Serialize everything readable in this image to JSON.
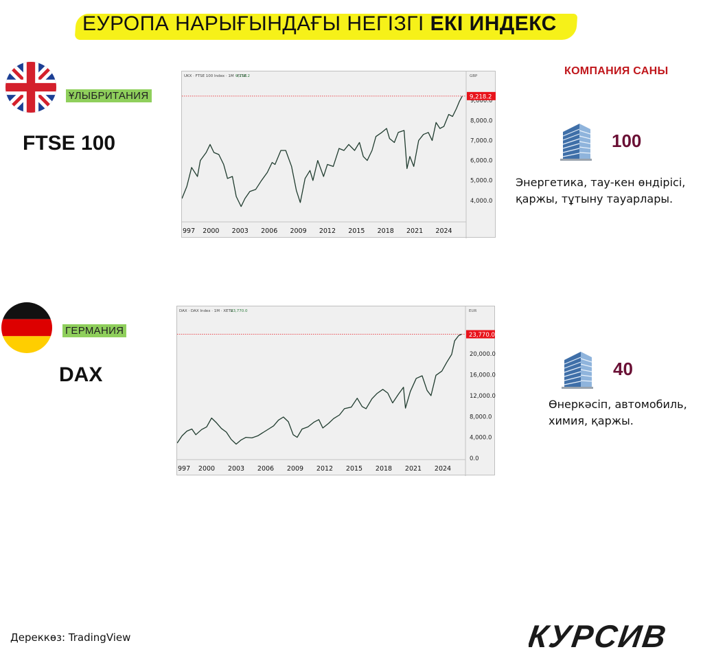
{
  "header": {
    "title_light": "ЕУРОПА НАРЫҒЫНДАҒЫ НЕГІЗГІ",
    "title_bold": "ЕКІ ИНДЕКС"
  },
  "company_count_label": "КОМПАНИЯ САНЫ",
  "uk": {
    "country": "ҰЛЫБРИТАНИЯ",
    "index": "FTSE 100",
    "count": "100",
    "sectors": "Энергетика, тау-кен өндірісі, қаржы, тұтыну тауарлары.",
    "flag_icon": "uk-flag-icon"
  },
  "de": {
    "country": "ГЕРМАНИЯ",
    "index": "DAX",
    "count": "40",
    "sectors": "Өнеркәсіп, автомобиль, химия, қаржы.",
    "flag_icon": "germany-flag-icon"
  },
  "footer": {
    "source": "Дереккөз: TradingView",
    "logo": "КУРСИВ"
  },
  "colors": {
    "title_highlight": "#f5ef00",
    "country_bg": "#8fcf5c",
    "accent_red": "#c0161b",
    "count_color": "#6a1035",
    "series_line": "#1f3b2e",
    "last_price_bg": "#e8131b"
  },
  "chart_data": [
    {
      "type": "line",
      "header": "UKX · FTSE 100 Index · 1M · FTSE",
      "header_value": "9,218.2",
      "currency": "GBP",
      "last_value_label": "9,218.2",
      "x_tick_labels": [
        "997",
        "2000",
        "2003",
        "2006",
        "2009",
        "2012",
        "2015",
        "2018",
        "2021",
        "2024"
      ],
      "y_tick_labels": [
        "4,000.0",
        "5,000.0",
        "6,000.0",
        "7,000.0",
        "8,000.0",
        "9,000.0"
      ],
      "xlim": [
        1997,
        2026.3
      ],
      "ylim": [
        3000,
        9900
      ],
      "yticks": [
        4000,
        5000,
        6000,
        7000,
        8000,
        9000
      ],
      "x": [
        1997,
        1997.5,
        1998,
        1998.6,
        1998.9,
        1999.5,
        1999.9,
        2000.3,
        2000.8,
        2001.3,
        2001.7,
        2002.2,
        2002.6,
        2003.1,
        2003.5,
        2004,
        2004.6,
        2005.2,
        2005.8,
        2006.3,
        2006.6,
        2007.2,
        2007.7,
        2008.3,
        2008.8,
        2009.2,
        2009.7,
        2010.2,
        2010.5,
        2011,
        2011.6,
        2012,
        2012.6,
        2013.2,
        2013.7,
        2014.2,
        2014.8,
        2015.3,
        2015.7,
        2016.1,
        2016.6,
        2017,
        2017.6,
        2018.1,
        2018.4,
        2018.9,
        2019.3,
        2019.9,
        2020.2,
        2020.5,
        2020.9,
        2021.4,
        2021.9,
        2022.4,
        2022.8,
        2023.2,
        2023.6,
        2024,
        2024.5,
        2024.9,
        2025.3,
        2025.6,
        2025.9
      ],
      "values": [
        4100,
        4700,
        5650,
        5200,
        6000,
        6400,
        6800,
        6400,
        6300,
        5800,
        5100,
        5200,
        4200,
        3700,
        4100,
        4450,
        4550,
        5000,
        5400,
        5900,
        5800,
        6500,
        6500,
        5700,
        4500,
        3900,
        5100,
        5500,
        5000,
        6000,
        5200,
        5800,
        5700,
        6600,
        6500,
        6800,
        6500,
        6900,
        6200,
        6000,
        6500,
        7200,
        7400,
        7600,
        7100,
        6900,
        7400,
        7500,
        5600,
        6200,
        5700,
        7000,
        7300,
        7400,
        7000,
        7900,
        7600,
        7700,
        8300,
        8200,
        8600,
        8950,
        9218
      ]
    },
    {
      "type": "line",
      "header": "DAX · DAX Index · 1M · XETR",
      "header_value": "23,770.0",
      "currency": "EUR",
      "last_value_label": "23,770.0",
      "x_tick_labels": [
        "997",
        "2000",
        "2003",
        "2006",
        "2009",
        "2012",
        "2015",
        "2018",
        "2021",
        "2024"
      ],
      "y_tick_labels": [
        "0.0",
        "4,000.0",
        "8,000.0",
        "12,000.0",
        "16,000.0",
        "20,000.0"
      ],
      "xlim": [
        1997,
        2026.3
      ],
      "ylim": [
        0,
        27000
      ],
      "yticks": [
        0,
        4000,
        8000,
        12000,
        16000,
        20000
      ],
      "x": [
        1997,
        1997.5,
        1998,
        1998.5,
        1998.9,
        1999.5,
        2000,
        2000.5,
        2001,
        2001.5,
        2002,
        2002.5,
        2003,
        2003.5,
        2004,
        2004.6,
        2005.2,
        2005.8,
        2006.3,
        2006.8,
        2007.3,
        2007.8,
        2008.3,
        2008.8,
        2009.2,
        2009.7,
        2010.3,
        2010.9,
        2011.4,
        2011.8,
        2012.4,
        2012.9,
        2013.5,
        2014,
        2014.7,
        2015.3,
        2015.8,
        2016.2,
        2016.8,
        2017.3,
        2017.9,
        2018.4,
        2018.9,
        2019.5,
        2020,
        2020.2,
        2020.7,
        2021.3,
        2021.9,
        2022.4,
        2022.8,
        2023.3,
        2023.9,
        2024.4,
        2024.9,
        2025.2,
        2025.6,
        2025.9
      ],
      "values": [
        2900,
        4300,
        5200,
        5600,
        4500,
        5500,
        6000,
        7700,
        6800,
        5700,
        5000,
        3600,
        2700,
        3500,
        4000,
        3900,
        4300,
        5000,
        5600,
        6200,
        7300,
        7900,
        7000,
        4500,
        4000,
        5600,
        6000,
        6900,
        7400,
        5800,
        6700,
        7600,
        8300,
        9500,
        9800,
        11500,
        9900,
        9500,
        11400,
        12400,
        13200,
        12500,
        10600,
        12300,
        13600,
        9600,
        12800,
        15300,
        15800,
        13000,
        12000,
        15900,
        16700,
        18400,
        19900,
        22500,
        23500,
        23770
      ]
    }
  ]
}
